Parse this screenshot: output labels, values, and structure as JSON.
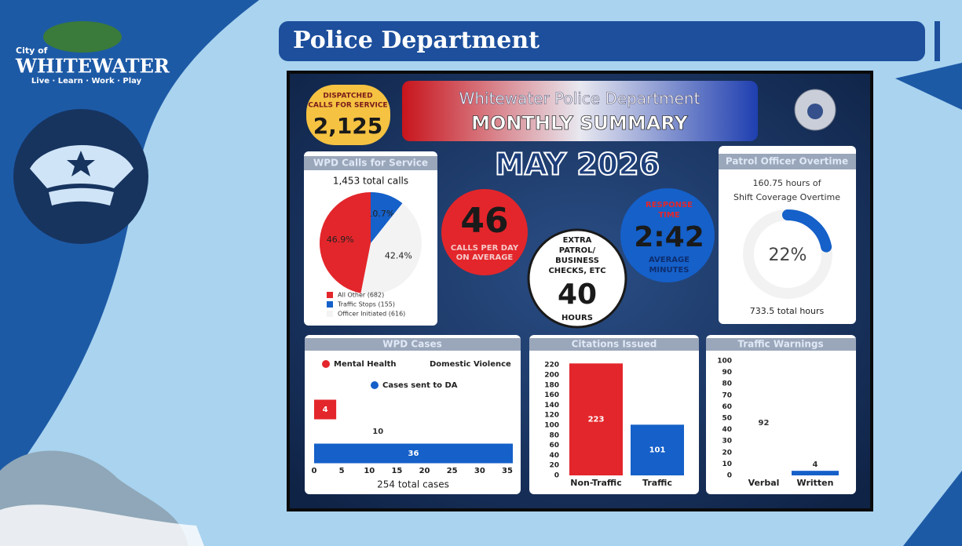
{
  "header": {
    "title": "Police Department"
  },
  "logo": {
    "city_of": "City of",
    "name": "WHITEWATER",
    "tagline": "Live · Learn · Work · Play"
  },
  "summary": {
    "dispatched": {
      "label_lines": [
        "DISPATCHED",
        "CALLS FOR SERVICE"
      ],
      "value": "2,125"
    },
    "banner": {
      "line1": "Whitewater Police Department",
      "line2": "MONTHLY SUMMARY"
    },
    "month": "MAY 2026",
    "calls_per_day": {
      "value": "46",
      "label_lines": [
        "CALLS PER DAY",
        "ON AVERAGE"
      ]
    },
    "response_time": {
      "label_lines": [
        "RESPONSE",
        "TIME"
      ],
      "value": "2:42",
      "unit_lines": [
        "AVERAGE",
        "MINUTES"
      ]
    },
    "extra_patrol": {
      "label_lines": [
        "EXTRA",
        "PATROL/",
        "BUSINESS",
        "CHECKS, ETC"
      ],
      "value": "40",
      "unit": "HOURS"
    }
  },
  "overtime": {
    "title": "Patrol Officer Overtime",
    "description_lines": [
      "160.75 hours of",
      "Shift Coverage Overtime"
    ],
    "percent": 22,
    "percent_label": "22%",
    "total": "733.5 total hours"
  },
  "chart_data": [
    {
      "type": "pie",
      "title": "WPD Calls for Service",
      "subtitle": "1,453 total calls",
      "categories": [
        "All Other (682)",
        "Traffic Stops (155)",
        "Officer Initiated (616)"
      ],
      "values": [
        46.9,
        10.7,
        42.4
      ],
      "value_labels": [
        "46.9%",
        "10.7%",
        "42.4%"
      ],
      "colors": [
        "#e3262b",
        "#1560c9",
        "#f3f3f3"
      ]
    },
    {
      "type": "hbar",
      "title": "WPD Cases",
      "categories": [
        "Mental Health",
        "Domestic Violence",
        "Cases sent to DA"
      ],
      "values": [
        4,
        10,
        36
      ],
      "colors": [
        "#e3262b",
        "#ffffff",
        "#1560c9"
      ],
      "xlim": [
        0,
        36
      ],
      "xticks": [
        0,
        5,
        10,
        15,
        20,
        25,
        30,
        35
      ],
      "footer": "254 total cases"
    },
    {
      "type": "bar",
      "title": "Citations Issued",
      "categories": [
        "Non-Traffic",
        "Traffic"
      ],
      "values": [
        223,
        101
      ],
      "colors": [
        "#e3262b",
        "#1560c9"
      ],
      "ylim": [
        0,
        225
      ],
      "yticks": [
        0,
        20,
        40,
        60,
        80,
        100,
        120,
        140,
        160,
        180,
        200,
        220
      ]
    },
    {
      "type": "bar",
      "title": "Traffic Warnings",
      "categories": [
        "Verbal",
        "Written"
      ],
      "values": [
        92,
        4
      ],
      "colors": [
        "#ffffff",
        "#1560c9"
      ],
      "ylim": [
        0,
        100
      ],
      "yticks": [
        0,
        10,
        20,
        30,
        40,
        50,
        60,
        70,
        80,
        90,
        100
      ]
    }
  ]
}
